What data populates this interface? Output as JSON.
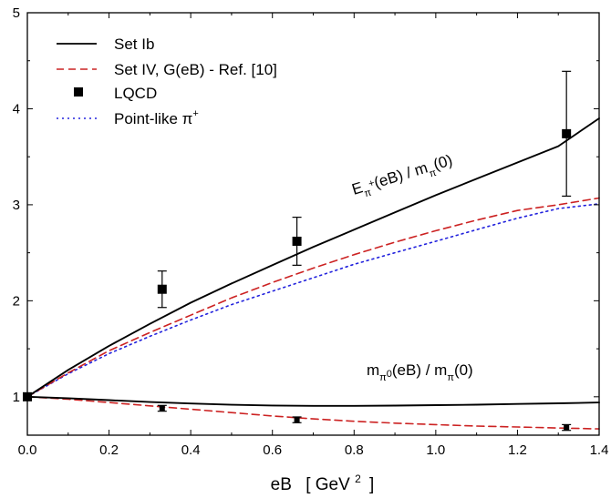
{
  "chart_data": {
    "type": "line",
    "title": "",
    "xlabel": "eB",
    "xlabel_unit": "[ GeV",
    "xlabel_unit_sup": "2",
    "xlabel_unit_close": "]",
    "ylabel": "",
    "xlim": [
      0.0,
      1.4
    ],
    "ylim": [
      0.6,
      5.0
    ],
    "x_ticks": [
      0.0,
      0.2,
      0.4,
      0.6,
      0.8,
      1.0,
      1.2,
      1.4
    ],
    "x_tick_labels": [
      "0.0",
      "0.2",
      "0.4",
      "0.6",
      "0.8",
      "1.0",
      "1.2",
      "1.4"
    ],
    "y_ticks": [
      1,
      2,
      3,
      4,
      5
    ],
    "y_tick_labels": [
      "1",
      "2",
      "3",
      "4",
      "5"
    ],
    "grid": false,
    "legend_position": "top-left",
    "legend": [
      {
        "label": "Set Ib",
        "style": "solid",
        "color": "#000000"
      },
      {
        "label": "Set IV, G(eB) - Ref. [10]",
        "style": "dashed",
        "color": "#cc2222"
      },
      {
        "label": "LQCD",
        "style": "marker",
        "color": "#000000"
      },
      {
        "label": "Point-like π",
        "label_sup": "+",
        "style": "dotted",
        "color": "#2222dd"
      }
    ],
    "annotations": [
      {
        "id": "charged",
        "base": "E",
        "sub": "π",
        "subsup": "+",
        "mid": "(eB) / m",
        "sub2": "π",
        "tail": "(0)"
      },
      {
        "id": "neutral",
        "base": "m",
        "sub": "π",
        "subsup": "0",
        "mid": "(eB) / m",
        "sub2": "π",
        "tail": "(0)"
      }
    ],
    "series": [
      {
        "name": "Set Ib",
        "group": "charged",
        "style": "solid",
        "color": "#000000",
        "x": [
          0.0,
          0.1,
          0.2,
          0.3,
          0.4,
          0.5,
          0.6,
          0.7,
          0.8,
          0.9,
          1.0,
          1.1,
          1.2,
          1.3,
          1.4
        ],
        "y": [
          1.0,
          1.28,
          1.53,
          1.76,
          1.98,
          2.18,
          2.37,
          2.56,
          2.74,
          2.92,
          3.1,
          3.27,
          3.44,
          3.61,
          3.9
        ]
      },
      {
        "name": "Set IV, G(eB) - Ref. [10]",
        "group": "charged",
        "style": "dashed",
        "color": "#cc2222",
        "x": [
          0.0,
          0.1,
          0.2,
          0.3,
          0.4,
          0.5,
          0.6,
          0.7,
          0.8,
          0.9,
          1.0,
          1.1,
          1.2,
          1.3,
          1.4
        ],
        "y": [
          1.0,
          1.25,
          1.48,
          1.67,
          1.85,
          2.03,
          2.19,
          2.34,
          2.48,
          2.61,
          2.73,
          2.84,
          2.94,
          3.0,
          3.07
        ]
      },
      {
        "name": "Point-like π+",
        "group": "charged",
        "style": "dotted",
        "color": "#2222dd",
        "x": [
          0.0,
          0.1,
          0.2,
          0.3,
          0.4,
          0.5,
          0.6,
          0.7,
          0.8,
          0.9,
          1.0,
          1.1,
          1.2,
          1.3,
          1.4
        ],
        "y": [
          1.0,
          1.24,
          1.45,
          1.63,
          1.8,
          1.96,
          2.1,
          2.24,
          2.38,
          2.5,
          2.62,
          2.74,
          2.86,
          2.96,
          3.01
        ]
      },
      {
        "name": "Set Ib",
        "group": "neutral",
        "style": "solid",
        "color": "#000000",
        "x": [
          0.0,
          0.1,
          0.2,
          0.3,
          0.4,
          0.5,
          0.6,
          0.7,
          0.8,
          0.9,
          1.0,
          1.1,
          1.2,
          1.3,
          1.4
        ],
        "y": [
          1.0,
          0.985,
          0.965,
          0.945,
          0.93,
          0.917,
          0.909,
          0.905,
          0.905,
          0.908,
          0.913,
          0.918,
          0.925,
          0.932,
          0.94
        ]
      },
      {
        "name": "Set IV, G(eB) - Ref. [10]",
        "group": "neutral",
        "style": "dashed",
        "color": "#cc2222",
        "x": [
          0.0,
          0.1,
          0.2,
          0.3,
          0.4,
          0.5,
          0.6,
          0.7,
          0.8,
          0.9,
          1.0,
          1.1,
          1.2,
          1.3,
          1.4
        ],
        "y": [
          1.0,
          0.975,
          0.94,
          0.905,
          0.87,
          0.835,
          0.8,
          0.77,
          0.745,
          0.725,
          0.71,
          0.695,
          0.685,
          0.675,
          0.665
        ]
      }
    ],
    "points": [
      {
        "name": "LQCD",
        "group": "charged",
        "x": 0.0,
        "y": 1.0,
        "err": 0.0
      },
      {
        "name": "LQCD",
        "group": "charged",
        "x": 0.33,
        "y": 2.12,
        "err": 0.19
      },
      {
        "name": "LQCD",
        "group": "charged",
        "x": 0.66,
        "y": 2.62,
        "err": 0.25
      },
      {
        "name": "LQCD",
        "group": "charged",
        "x": 1.32,
        "y": 3.74,
        "err": 0.65
      },
      {
        "name": "LQCD",
        "group": "neutral",
        "x": 0.33,
        "y": 0.88,
        "err": 0.03
      },
      {
        "name": "LQCD",
        "group": "neutral",
        "x": 0.66,
        "y": 0.76,
        "err": 0.03
      },
      {
        "name": "LQCD",
        "group": "neutral",
        "x": 1.32,
        "y": 0.68,
        "err": 0.03
      }
    ]
  }
}
